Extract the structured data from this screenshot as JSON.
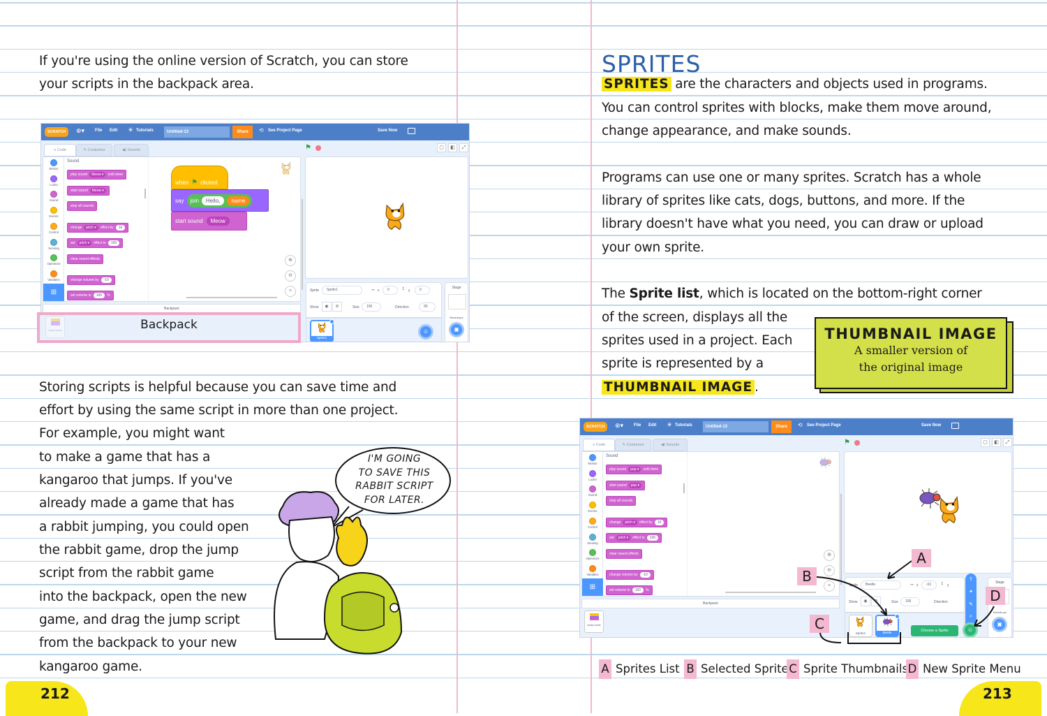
{
  "left_page": {
    "intro_lines": [
      "If you're using the online version of Scratch, you can store",
      "your scripts in the backpack area."
    ],
    "body_lines": [
      "Storing scripts is helpful because you can save time and",
      "effort by using the same script in more than one project.",
      "For example, you might want",
      "to make a game that has a",
      "kangaroo that jumps. If you've",
      "already made a game that has",
      "a rabbit jumping, you could open",
      "the rabbit game, drop the jump",
      "script from the rabbit game",
      "into the backpack, open the new",
      "game, and drag the jump script",
      "from the backpack to your new",
      "kangaroo game."
    ],
    "speech_bubble": [
      "I'M GOING",
      "TO SAVE THIS",
      "RABBIT SCRIPT",
      "FOR LATER."
    ],
    "backpack_callout": "Backpack",
    "page_number": "212"
  },
  "right_page": {
    "heading": "SPRITES",
    "para1": [
      {
        "term": "SPRITES",
        "rest": " are the characters and objects used in programs."
      },
      "You can control sprites with blocks, make them move around,",
      "change appearance, and make sounds."
    ],
    "para2": [
      "Programs can use one or many sprites. Scratch has a whole",
      "library of sprites like cats, dogs, buttons, and more. If the",
      "library doesn't have what you need, you can draw or upload",
      "your own sprite."
    ],
    "para3": [
      {
        "pre": "The ",
        "term": "Sprite list",
        "rest": ", which is located on the bottom-right corner"
      },
      "of the screen, displays all the",
      "sprites used in a project. Each",
      "sprite is represented by a",
      {
        "term": "THUMBNAIL IMAGE",
        "rest": "."
      }
    ],
    "definition_box": {
      "title": "THUMBNAIL IMAGE",
      "lines": [
        "A smaller version of",
        "the original image"
      ]
    },
    "annotations": [
      "A",
      "B",
      "C",
      "D"
    ],
    "legend": [
      {
        "letter": "A",
        "label": "Sprites List"
      },
      {
        "letter": "B",
        "label": "Selected Sprite"
      },
      {
        "letter": "C",
        "label": "Sprite Thumbnails"
      },
      {
        "letter": "D",
        "label": "New Sprite Menu"
      }
    ],
    "page_number": "213"
  },
  "scratch_left": {
    "menu": {
      "logo": "SCRATCH",
      "file": "File",
      "edit": "Edit",
      "tutorials": "Tutorials",
      "project_title": "Untitled-13",
      "share": "Share",
      "see_project_page": "See Project Page",
      "save_now": "Save Now"
    },
    "tabs": [
      "Code",
      "Costumes",
      "Sounds"
    ],
    "categories": [
      "Motion",
      "Looks",
      "Sound",
      "Events",
      "Control",
      "Sensing",
      "Operators",
      "Variables"
    ],
    "category_colors": [
      "#4c97ff",
      "#9966ff",
      "#cf63cf",
      "#ffbf00",
      "#ffab19",
      "#5cb1d6",
      "#59c059",
      "#ff8c1a"
    ],
    "palette_heading": "Sound",
    "palette_blocks": [
      [
        "play sound",
        {
          "menu": "Meow"
        },
        "until done"
      ],
      [
        "start sound",
        {
          "menu": "Meow"
        }
      ],
      [
        "stop all sounds"
      ],
      [
        "change",
        {
          "menu": "pitch"
        },
        "effect by",
        {
          "num": "10"
        }
      ],
      [
        "set",
        {
          "menu": "pitch"
        },
        "effect to",
        {
          "num": "100"
        }
      ],
      [
        "clear sound effects"
      ],
      [
        "change volume by",
        {
          "num": "-10"
        }
      ],
      [
        "set volume to",
        {
          "num": "100"
        },
        "%"
      ]
    ],
    "script": {
      "when": "when",
      "clicked": "clicked",
      "say": "say",
      "join": "join",
      "join_a": "Hello,",
      "join_b": "name",
      "start_sound": "start sound",
      "sound_menu": "Meow"
    },
    "sprite_info": {
      "sprite_label": "Sprite",
      "sprite_name": "Sprite1",
      "x_label": "x",
      "x": "0",
      "y_label": "y",
      "y": "0",
      "show_label": "Show",
      "size_label": "Size",
      "size": "100",
      "direction_label": "Direction",
      "direction": "90"
    },
    "stage_label": "Stage",
    "backdrops_label": "Backdrops",
    "backpack_label": "Backpack",
    "backpack_item": "script code",
    "sprites": [
      {
        "name": "Sprite1",
        "kind": "cat",
        "selected": true
      }
    ],
    "stage_sprites": [
      "cat"
    ]
  },
  "scratch_right": {
    "menu": {
      "logo": "SCRATCH",
      "file": "File",
      "edit": "Edit",
      "tutorials": "Tutorials",
      "project_title": "Untitled-13",
      "share": "Share",
      "see_project_page": "See Project Page",
      "save_now": "Save Now"
    },
    "tabs": [
      "Code",
      "Costumes",
      "Sounds"
    ],
    "categories": [
      "Motion",
      "Looks",
      "Sound",
      "Events",
      "Control",
      "Sensing",
      "Operators",
      "Variables"
    ],
    "category_colors": [
      "#4c97ff",
      "#9966ff",
      "#cf63cf",
      "#ffbf00",
      "#ffab19",
      "#5cb1d6",
      "#59c059",
      "#ff8c1a"
    ],
    "palette_heading": "Sound",
    "palette_blocks": [
      [
        "play sound",
        {
          "menu": "pop"
        },
        "until done"
      ],
      [
        "start sound",
        {
          "menu": "pop"
        }
      ],
      [
        "stop all sounds"
      ],
      [
        "change",
        {
          "menu": "pitch"
        },
        "effect by",
        {
          "num": "10"
        }
      ],
      [
        "set",
        {
          "menu": "pitch"
        },
        "effect to",
        {
          "num": "100"
        }
      ],
      [
        "clear sound effects"
      ],
      [
        "change volume by",
        {
          "num": "-10"
        }
      ],
      [
        "set volume to",
        {
          "num": "100"
        },
        "%"
      ]
    ],
    "sprite_info": {
      "sprite_label": "Sprite",
      "sprite_name": "Beetle",
      "x_label": "x",
      "x": "-61",
      "y_label": "y",
      "show_label": "Show",
      "size_label": "Size",
      "size": "100",
      "direction_label": "Direction"
    },
    "stage_label": "Stage",
    "backdrops_label": "Backdrops",
    "backpack_label": "Backpack",
    "backpack_item": "script code",
    "sprites": [
      {
        "name": "Sprite1",
        "kind": "cat",
        "selected": false
      },
      {
        "name": "Beetle",
        "kind": "beetle",
        "selected": true
      }
    ],
    "stage_sprites": [
      "beetle",
      "cat"
    ],
    "choose_sprite": "Choose a Sprite"
  },
  "colors": {
    "rule": "#bcd7e8",
    "margin": "#f1b9c9",
    "highlight": "#f6e61a",
    "definition_box": "#d4e04a",
    "note": "#f4b8d0",
    "heading": "#2b5fa8",
    "scratch_menu": "#4d7fc9"
  }
}
